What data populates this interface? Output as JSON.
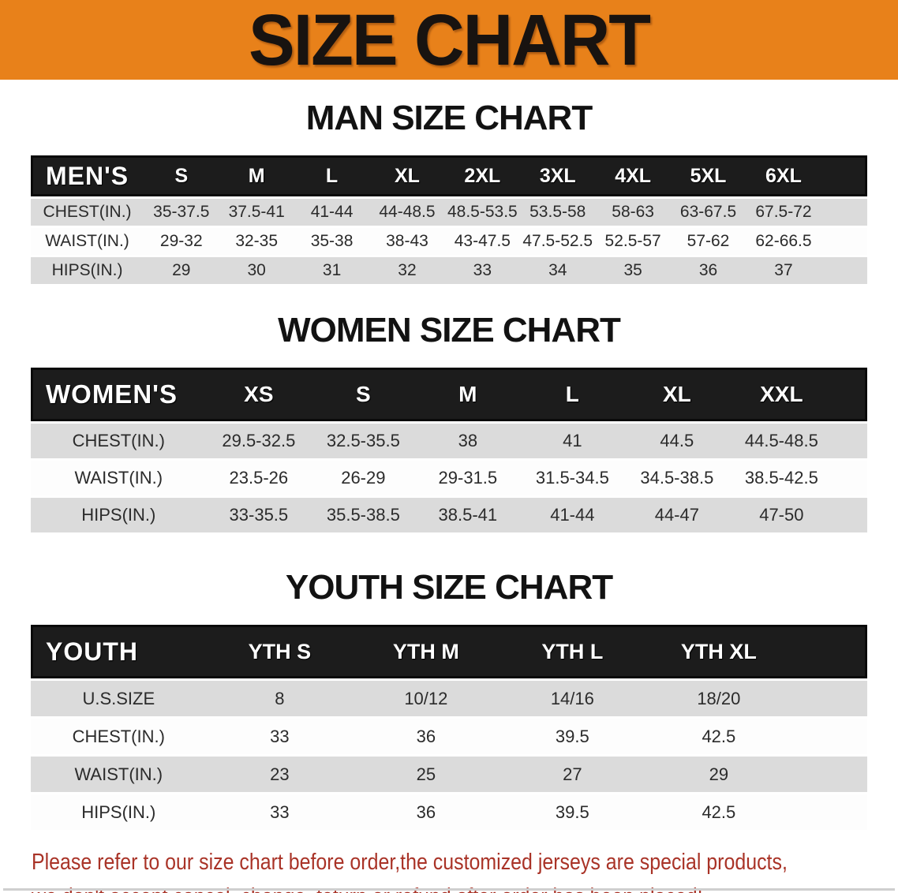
{
  "banner": {
    "title": "SIZE CHART",
    "bg_color": "#E8811A"
  },
  "colors": {
    "banner_bg": "#E8811A",
    "table_header_bg": "#1c1c1c",
    "row_stripe": "#DBDBDB",
    "note_red": "#A93327"
  },
  "sections": [
    {
      "heading": "MAN SIZE CHART",
      "table": {
        "corner_label": "MEN'S",
        "columns": [
          "S",
          "M",
          "L",
          "XL",
          "2XL",
          "3XL",
          "4XL",
          "5XL",
          "6XL"
        ],
        "rows": [
          {
            "label": "CHEST(IN.)",
            "values": [
              "35-37.5",
              "37.5-41",
              "41-44",
              "44-48.5",
              "48.5-53.5",
              "53.5-58",
              "58-63",
              "63-67.5",
              "67.5-72"
            ]
          },
          {
            "label": "WAIST(IN.)",
            "values": [
              "29-32",
              "32-35",
              "35-38",
              "38-43",
              "43-47.5",
              "47.5-52.5",
              "52.5-57",
              "57-62",
              "62-66.5"
            ]
          },
          {
            "label": "HIPS(IN.)",
            "values": [
              "29",
              "30",
              "31",
              "32",
              "33",
              "34",
              "35",
              "36",
              "37"
            ]
          }
        ]
      }
    },
    {
      "heading": "WOMEN SIZE CHART",
      "table": {
        "corner_label": "WOMEN'S",
        "columns": [
          "XS",
          "S",
          "M",
          "L",
          "XL",
          "XXL"
        ],
        "rows": [
          {
            "label": "CHEST(IN.)",
            "values": [
              "29.5-32.5",
              "32.5-35.5",
              "38",
              "41",
              "44.5",
              "44.5-48.5"
            ]
          },
          {
            "label": "WAIST(IN.)",
            "values": [
              "23.5-26",
              "26-29",
              "29-31.5",
              "31.5-34.5",
              "34.5-38.5",
              "38.5-42.5"
            ]
          },
          {
            "label": "HIPS(IN.)",
            "values": [
              "33-35.5",
              "35.5-38.5",
              "38.5-41",
              "41-44",
              "44-47",
              "47-50"
            ]
          }
        ]
      }
    },
    {
      "heading": "YOUTH SIZE CHART",
      "table": {
        "corner_label": "YOUTH",
        "columns": [
          "YTH S",
          "YTH M",
          "YTH L",
          "YTH XL"
        ],
        "rows": [
          {
            "label": "U.S.SIZE",
            "values": [
              "8",
              "10/12",
              "14/16",
              "18/20"
            ]
          },
          {
            "label": "CHEST(IN.)",
            "values": [
              "33",
              "36",
              "39.5",
              "42.5"
            ]
          },
          {
            "label": "WAIST(IN.)",
            "values": [
              "23",
              "25",
              "27",
              "29"
            ]
          },
          {
            "label": "HIPS(IN.)",
            "values": [
              "33",
              "36",
              "39.5",
              "42.5"
            ]
          }
        ]
      }
    }
  ],
  "note": {
    "line1": "Please refer to our size chart before order,the customized jerseys are special products,",
    "line2": "we don't accept cancel, change, teturn or refund after order has been placed!"
  }
}
